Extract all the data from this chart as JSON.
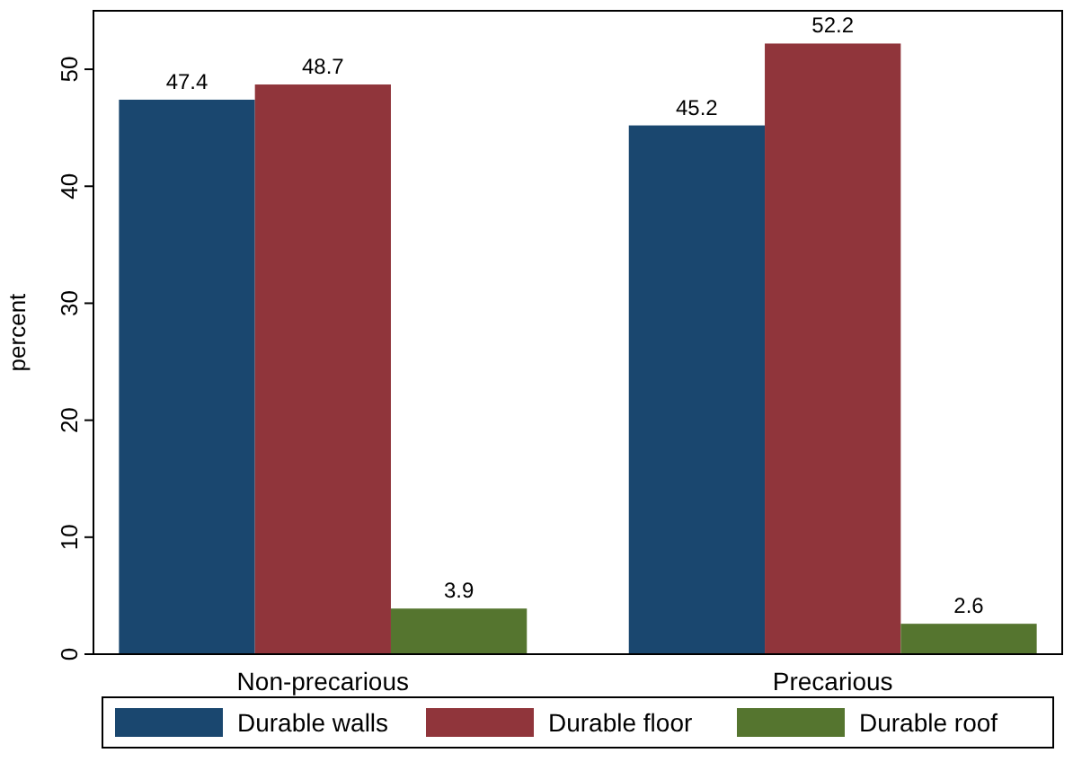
{
  "chart_data": {
    "type": "bar",
    "ylabel": "percent",
    "categories": [
      "Non-precarious",
      "Precarious"
    ],
    "series": [
      {
        "name": "Durable walls",
        "color": "#1a476f",
        "values": [
          47.4,
          45.2
        ]
      },
      {
        "name": "Durable floor",
        "color": "#90353b",
        "values": [
          48.7,
          52.2
        ]
      },
      {
        "name": "Durable roof",
        "color": "#55752f",
        "values": [
          3.9,
          2.6
        ]
      }
    ],
    "ylim": [
      0,
      55
    ],
    "yticks": [
      0,
      10,
      20,
      30,
      40,
      50
    ],
    "data_labels": true,
    "legend": "bottom",
    "grid": false
  }
}
